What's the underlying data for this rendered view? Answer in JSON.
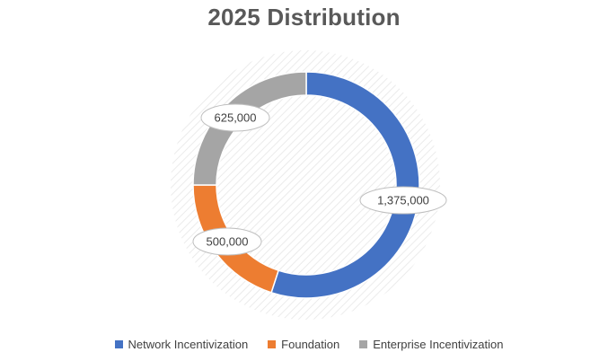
{
  "chart_data": {
    "type": "pie",
    "title": "2025 Distribution",
    "series": [
      {
        "name": "Network Incentivization",
        "value": 1375000,
        "label": "1,375,000",
        "color": "#4472C4"
      },
      {
        "name": "Foundation",
        "value": 500000,
        "label": "500,000",
        "color": "#ED7D31"
      },
      {
        "name": "Enterprise Incentivization",
        "value": 625000,
        "label": "625,000",
        "color": "#A5A5A5"
      }
    ],
    "legend_position": "bottom"
  }
}
